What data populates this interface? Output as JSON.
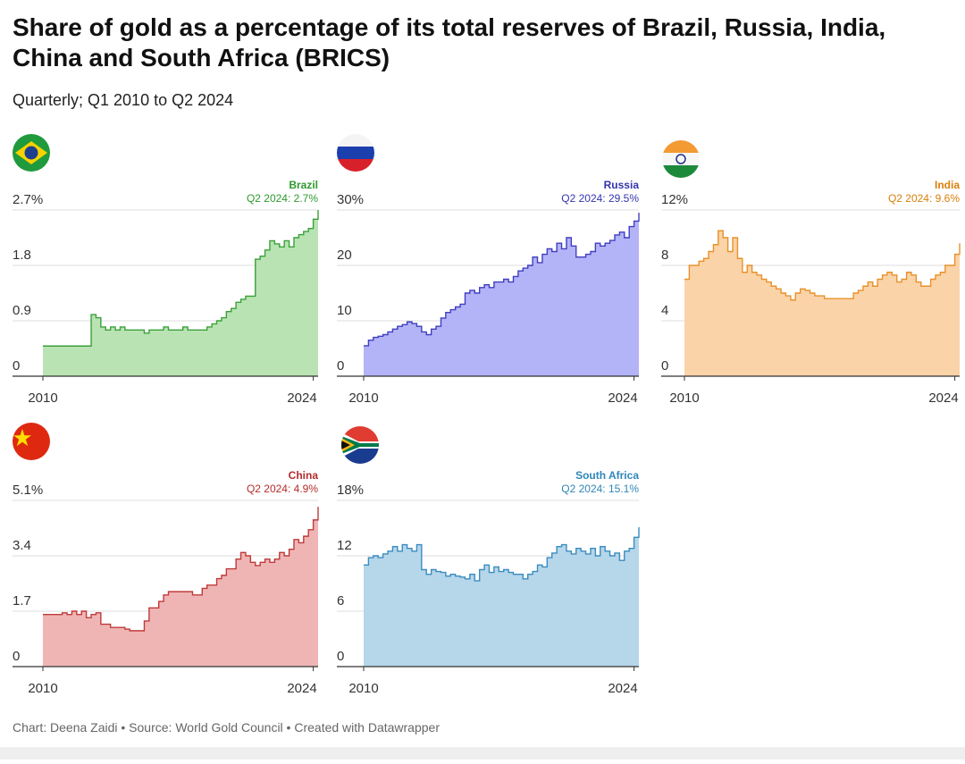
{
  "title": "Share of gold as a percentage of its total reserves of Brazil, Russia, India, China and South Africa (BRICS)",
  "subtitle": "Quarterly; Q1 2010 to Q2 2024",
  "footer": "Chart: Deena Zaidi • Source: World Gold Council • Created with Datawrapper",
  "chart_data": [
    {
      "type": "step-area",
      "title": "Brazil",
      "annotation": "Q2 2024: 2.7%",
      "color": "#3aa13a",
      "fill": "#b9e3b3",
      "label_color": "#2e9a2e",
      "grid": true,
      "x": [
        2010,
        2010.25,
        2010.5,
        2010.75,
        2011,
        2011.25,
        2011.5,
        2011.75,
        2012,
        2012.25,
        2012.5,
        2012.75,
        2013,
        2013.25,
        2013.5,
        2013.75,
        2014,
        2014.25,
        2014.5,
        2014.75,
        2015,
        2015.25,
        2015.5,
        2015.75,
        2016,
        2016.25,
        2016.5,
        2016.75,
        2017,
        2017.25,
        2017.5,
        2017.75,
        2018,
        2018.25,
        2018.5,
        2018.75,
        2019,
        2019.25,
        2019.5,
        2019.75,
        2020,
        2020.25,
        2020.5,
        2020.75,
        2021,
        2021.25,
        2021.5,
        2021.75,
        2022,
        2022.25,
        2022.5,
        2022.75,
        2023,
        2023.25,
        2023.5,
        2023.75,
        2024,
        2024.25
      ],
      "values": [
        0.49,
        0.49,
        0.49,
        0.49,
        0.49,
        0.49,
        0.49,
        0.49,
        0.49,
        0.49,
        1.0,
        0.95,
        0.8,
        0.75,
        0.8,
        0.75,
        0.8,
        0.75,
        0.75,
        0.75,
        0.75,
        0.7,
        0.75,
        0.75,
        0.75,
        0.8,
        0.75,
        0.75,
        0.75,
        0.8,
        0.75,
        0.75,
        0.75,
        0.75,
        0.8,
        0.85,
        0.9,
        0.95,
        1.05,
        1.1,
        1.2,
        1.25,
        1.3,
        1.3,
        1.9,
        1.95,
        2.05,
        2.2,
        2.15,
        2.1,
        2.2,
        2.1,
        2.25,
        2.3,
        2.35,
        2.4,
        2.55,
        2.7
      ],
      "xlim": [
        2010,
        2024.25
      ],
      "xticks": [
        2010,
        2024
      ],
      "ylim": [
        0,
        2.7
      ],
      "yticks": [
        0,
        0.9,
        1.8,
        {
          "value": 2.7,
          "label": "2.7%"
        }
      ]
    },
    {
      "type": "step-area",
      "title": "Russia",
      "annotation": "Q2 2024: 29.5%",
      "color": "#3f3fc0",
      "fill": "#b3b3f7",
      "label_color": "#3434b0",
      "grid": true,
      "x": [
        2010,
        2010.25,
        2010.5,
        2010.75,
        2011,
        2011.25,
        2011.5,
        2011.75,
        2012,
        2012.25,
        2012.5,
        2012.75,
        2013,
        2013.25,
        2013.5,
        2013.75,
        2014,
        2014.25,
        2014.5,
        2014.75,
        2015,
        2015.25,
        2015.5,
        2015.75,
        2016,
        2016.25,
        2016.5,
        2016.75,
        2017,
        2017.25,
        2017.5,
        2017.75,
        2018,
        2018.25,
        2018.5,
        2018.75,
        2019,
        2019.25,
        2019.5,
        2019.75,
        2020,
        2020.25,
        2020.5,
        2020.75,
        2021,
        2021.25,
        2021.5,
        2021.75,
        2022,
        2022.25,
        2022.5,
        2022.75,
        2023,
        2023.25,
        2023.5,
        2023.75,
        2024,
        2024.25
      ],
      "values": [
        5.5,
        6.5,
        7,
        7.2,
        7.5,
        8,
        8.5,
        9,
        9.3,
        9.8,
        9.5,
        9,
        8,
        7.5,
        8.5,
        9,
        10.5,
        11.5,
        12,
        12.5,
        13,
        15,
        15.5,
        15,
        16,
        16.5,
        16,
        17,
        17,
        17.5,
        17,
        18,
        19,
        19.5,
        20,
        21.5,
        20.5,
        22,
        23,
        22.5,
        24,
        23,
        25,
        23.5,
        21.5,
        21.5,
        22,
        22.5,
        24,
        23.5,
        24,
        24.5,
        25.5,
        26,
        25,
        27,
        28,
        29.5
      ],
      "xlim": [
        2010,
        2024.25
      ],
      "xticks": [
        2010,
        2024
      ],
      "ylim": [
        0,
        30
      ],
      "yticks": [
        0,
        10,
        20,
        {
          "value": 30,
          "label": "30%"
        }
      ]
    },
    {
      "type": "step-area",
      "title": "India",
      "annotation": "Q2 2024: 9.6%",
      "color": "#e8912a",
      "fill": "#fbd3a8",
      "label_color": "#d97f0b",
      "grid": true,
      "x": [
        2010,
        2010.25,
        2010.5,
        2010.75,
        2011,
        2011.25,
        2011.5,
        2011.75,
        2012,
        2012.25,
        2012.5,
        2012.75,
        2013,
        2013.25,
        2013.5,
        2013.75,
        2014,
        2014.25,
        2014.5,
        2014.75,
        2015,
        2015.25,
        2015.5,
        2015.75,
        2016,
        2016.25,
        2016.5,
        2016.75,
        2017,
        2017.25,
        2017.5,
        2017.75,
        2018,
        2018.25,
        2018.5,
        2018.75,
        2019,
        2019.25,
        2019.5,
        2019.75,
        2020,
        2020.25,
        2020.5,
        2020.75,
        2021,
        2021.25,
        2021.5,
        2021.75,
        2022,
        2022.25,
        2022.5,
        2022.75,
        2023,
        2023.25,
        2023.5,
        2023.75,
        2024,
        2024.25
      ],
      "values": [
        7,
        8,
        8,
        8.3,
        8.5,
        9,
        9.5,
        10.5,
        10,
        9,
        10,
        8.5,
        7.5,
        8,
        7.5,
        7.3,
        7,
        6.8,
        6.5,
        6.3,
        6,
        5.8,
        5.5,
        6,
        6.3,
        6.2,
        6,
        5.8,
        5.8,
        5.6,
        5.6,
        5.6,
        5.6,
        5.6,
        5.6,
        6,
        6.2,
        6.5,
        6.8,
        6.5,
        7,
        7.3,
        7.5,
        7.3,
        6.8,
        7,
        7.5,
        7.3,
        6.8,
        6.5,
        6.5,
        7,
        7.3,
        7.5,
        8,
        8,
        8.8,
        9.6
      ],
      "xlim": [
        2010,
        2024.25
      ],
      "xticks": [
        2010,
        2024
      ],
      "ylim": [
        0,
        12
      ],
      "yticks": [
        0,
        4,
        8,
        {
          "value": 12,
          "label": "12%"
        }
      ]
    },
    {
      "type": "step-area",
      "title": "China",
      "annotation": "Q2 2024: 4.9%",
      "color": "#c03a3a",
      "fill": "#efb5b5",
      "label_color": "#b32c2c",
      "grid": true,
      "x": [
        2010,
        2010.25,
        2010.5,
        2010.75,
        2011,
        2011.25,
        2011.5,
        2011.75,
        2012,
        2012.25,
        2012.5,
        2012.75,
        2013,
        2013.25,
        2013.5,
        2013.75,
        2014,
        2014.25,
        2014.5,
        2014.75,
        2015,
        2015.25,
        2015.5,
        2015.75,
        2016,
        2016.25,
        2016.5,
        2016.75,
        2017,
        2017.25,
        2017.5,
        2017.75,
        2018,
        2018.25,
        2018.5,
        2018.75,
        2019,
        2019.25,
        2019.5,
        2019.75,
        2020,
        2020.25,
        2020.5,
        2020.75,
        2021,
        2021.25,
        2021.5,
        2021.75,
        2022,
        2022.25,
        2022.5,
        2022.75,
        2023,
        2023.25,
        2023.5,
        2023.75,
        2024,
        2024.25
      ],
      "values": [
        1.6,
        1.6,
        1.6,
        1.6,
        1.65,
        1.6,
        1.7,
        1.6,
        1.7,
        1.5,
        1.6,
        1.65,
        1.3,
        1.3,
        1.2,
        1.2,
        1.2,
        1.15,
        1.1,
        1.1,
        1.1,
        1.4,
        1.8,
        1.8,
        2.0,
        2.2,
        2.3,
        2.3,
        2.3,
        2.3,
        2.3,
        2.2,
        2.2,
        2.4,
        2.5,
        2.5,
        2.7,
        2.8,
        3.0,
        3.0,
        3.3,
        3.5,
        3.4,
        3.2,
        3.1,
        3.2,
        3.3,
        3.2,
        3.3,
        3.5,
        3.4,
        3.6,
        3.9,
        3.8,
        4.0,
        4.2,
        4.5,
        4.9
      ],
      "xlim": [
        2010,
        2024.25
      ],
      "xticks": [
        2010,
        2024
      ],
      "ylim": [
        0,
        5.1
      ],
      "yticks": [
        0,
        1.7,
        3.4,
        {
          "value": 5.1,
          "label": "5.1%"
        }
      ]
    },
    {
      "type": "step-area",
      "title": "South Africa",
      "annotation": "Q2 2024: 15.1%",
      "color": "#3a8cc0",
      "fill": "#b6d6ea",
      "label_color": "#2f86b8",
      "grid": true,
      "x": [
        2010,
        2010.25,
        2010.5,
        2010.75,
        2011,
        2011.25,
        2011.5,
        2011.75,
        2012,
        2012.25,
        2012.5,
        2012.75,
        2013,
        2013.25,
        2013.5,
        2013.75,
        2014,
        2014.25,
        2014.5,
        2014.75,
        2015,
        2015.25,
        2015.5,
        2015.75,
        2016,
        2016.25,
        2016.5,
        2016.75,
        2017,
        2017.25,
        2017.5,
        2017.75,
        2018,
        2018.25,
        2018.5,
        2018.75,
        2019,
        2019.25,
        2019.5,
        2019.75,
        2020,
        2020.25,
        2020.5,
        2020.75,
        2021,
        2021.25,
        2021.5,
        2021.75,
        2022,
        2022.25,
        2022.5,
        2022.75,
        2023,
        2023.25,
        2023.5,
        2023.75,
        2024,
        2024.25
      ],
      "values": [
        11,
        11.8,
        12,
        11.8,
        12.2,
        12.5,
        13,
        12.5,
        13.2,
        12.8,
        12.5,
        13.2,
        10.5,
        10,
        10.5,
        10.3,
        10.2,
        9.8,
        10,
        9.8,
        9.7,
        9.5,
        10,
        9.3,
        10.5,
        11,
        10.2,
        10.8,
        10.3,
        10.5,
        10.2,
        10,
        10,
        9.5,
        10,
        10.3,
        11,
        10.8,
        11.8,
        12.3,
        13,
        13.2,
        12.5,
        12.2,
        12.8,
        12.5,
        12.2,
        12.8,
        12,
        13,
        12.5,
        12,
        12.3,
        11.5,
        12.5,
        12.8,
        14,
        15.1
      ],
      "xlim": [
        2010,
        2024.25
      ],
      "xticks": [
        2010,
        2024
      ],
      "ylim": [
        0,
        18
      ],
      "yticks": [
        0,
        6,
        12,
        {
          "value": 18,
          "label": "18%"
        }
      ]
    }
  ]
}
